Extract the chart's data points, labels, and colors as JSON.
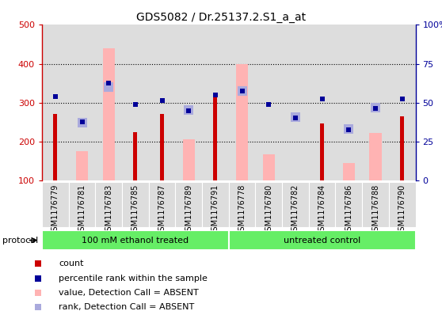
{
  "title": "GDS5082 / Dr.25137.2.S1_a_at",
  "samples": [
    "GSM1176779",
    "GSM1176781",
    "GSM1176783",
    "GSM1176785",
    "GSM1176787",
    "GSM1176789",
    "GSM1176791",
    "GSM1176778",
    "GSM1176780",
    "GSM1176782",
    "GSM1176784",
    "GSM1176786",
    "GSM1176788",
    "GSM1176790"
  ],
  "count_values": [
    270,
    100,
    100,
    225,
    270,
    100,
    320,
    100,
    100,
    100,
    247,
    100,
    100,
    265
  ],
  "rank_values": [
    315,
    250,
    350,
    295,
    305,
    280,
    320,
    330,
    295,
    260,
    310,
    230,
    285,
    310
  ],
  "absent_value_values": [
    100,
    175,
    440,
    100,
    100,
    205,
    100,
    400,
    168,
    100,
    100,
    145,
    222,
    100
  ],
  "absent_rank_values": [
    null,
    248,
    340,
    null,
    null,
    282,
    null,
    330,
    null,
    263,
    null,
    232,
    288,
    null
  ],
  "group1_count": 7,
  "group2_count": 7,
  "group1_label": "100 mM ethanol treated",
  "group2_label": "untreated control",
  "ylim_left": [
    100,
    500
  ],
  "ylim_right": [
    0,
    100
  ],
  "yticks_left": [
    100,
    200,
    300,
    400,
    500
  ],
  "yticks_right": [
    0,
    25,
    50,
    75,
    100
  ],
  "ytick_labels_right": [
    "0",
    "25",
    "50",
    "75",
    "100%"
  ],
  "color_count": "#cc0000",
  "color_rank": "#000099",
  "color_absent_value": "#ffb3b3",
  "color_absent_rank": "#aaaadd",
  "color_group": "#66ee66",
  "col_bg": "#dddddd",
  "legend_items": [
    {
      "label": "count",
      "color": "#cc0000"
    },
    {
      "label": "percentile rank within the sample",
      "color": "#000099"
    },
    {
      "label": "value, Detection Call = ABSENT",
      "color": "#ffb3b3"
    },
    {
      "label": "rank, Detection Call = ABSENT",
      "color": "#aaaadd"
    }
  ]
}
